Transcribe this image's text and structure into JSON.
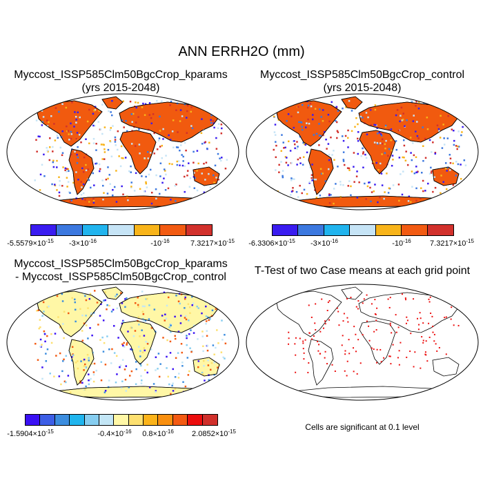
{
  "main_title": "ANN ERRH2O (mm)",
  "panels": [
    {
      "title_line1": "Myccost_ISSP585Clm50BgcCrop_kparams",
      "title_line2": "(yrs 2015-2048)"
    },
    {
      "title_line1": "Myccost_ISSP585Clm50BgcCrop_control",
      "title_line2": "(yrs 2015-2048)"
    },
    {
      "title_line1": "Myccost_ISSP585Clm50BgcCrop_kparams",
      "title_line2": "- Myccost_ISSP585Clm50BgcCrop_control"
    },
    {
      "title_line1": "T-Test of two Case means at each grid point",
      "title_line2": ""
    }
  ],
  "colorbar1": {
    "colors": [
      "#3a1cf0",
      "#3c78df",
      "#21b4ee",
      "#c6e4f6",
      "#f8b41a",
      "#f25b12",
      "#d2312c"
    ],
    "labels": [
      {
        "mant": "-5.5579",
        "exp": "-15"
      },
      {
        "mant": "-3",
        "exp": "-16"
      },
      {
        "mant": "-10",
        "exp": "-16"
      },
      {
        "mant": "7.3217",
        "exp": "-15"
      }
    ]
  },
  "colorbar2": {
    "colors": [
      "#3a1cf0",
      "#3c78df",
      "#21b4ee",
      "#c6e4f6",
      "#f8b41a",
      "#f25b12",
      "#d2312c"
    ],
    "labels": [
      {
        "mant": "-6.3306",
        "exp": "-15"
      },
      {
        "mant": "-3",
        "exp": "-16"
      },
      {
        "mant": "-10",
        "exp": "-16"
      },
      {
        "mant": "7.3217",
        "exp": "-15"
      }
    ]
  },
  "colorbar3": {
    "colors": [
      "#3a10f4",
      "#3d5ee6",
      "#3c8ddf",
      "#20b5ee",
      "#86cdf0",
      "#c3e6f6",
      "#fff7a6",
      "#fde070",
      "#fbb31a",
      "#f98f0f",
      "#f35a12",
      "#ec0d0d",
      "#d0302b"
    ],
    "labels": [
      {
        "mant": "-1.5904",
        "exp": "-15"
      },
      {
        "mant": "-0.4",
        "exp": "-16"
      },
      {
        "mant": "0.8",
        "exp": "-16"
      },
      {
        "mant": "2.0852",
        "exp": "-15"
      }
    ]
  },
  "note": "Cells are significant at 0.1 level",
  "map_colors": {
    "panel1": "#f15a0f",
    "panel2": "#f15a0f",
    "panel3": "#fff7a6",
    "panel4": "#ffffff",
    "significant": "#ec0d0d"
  }
}
